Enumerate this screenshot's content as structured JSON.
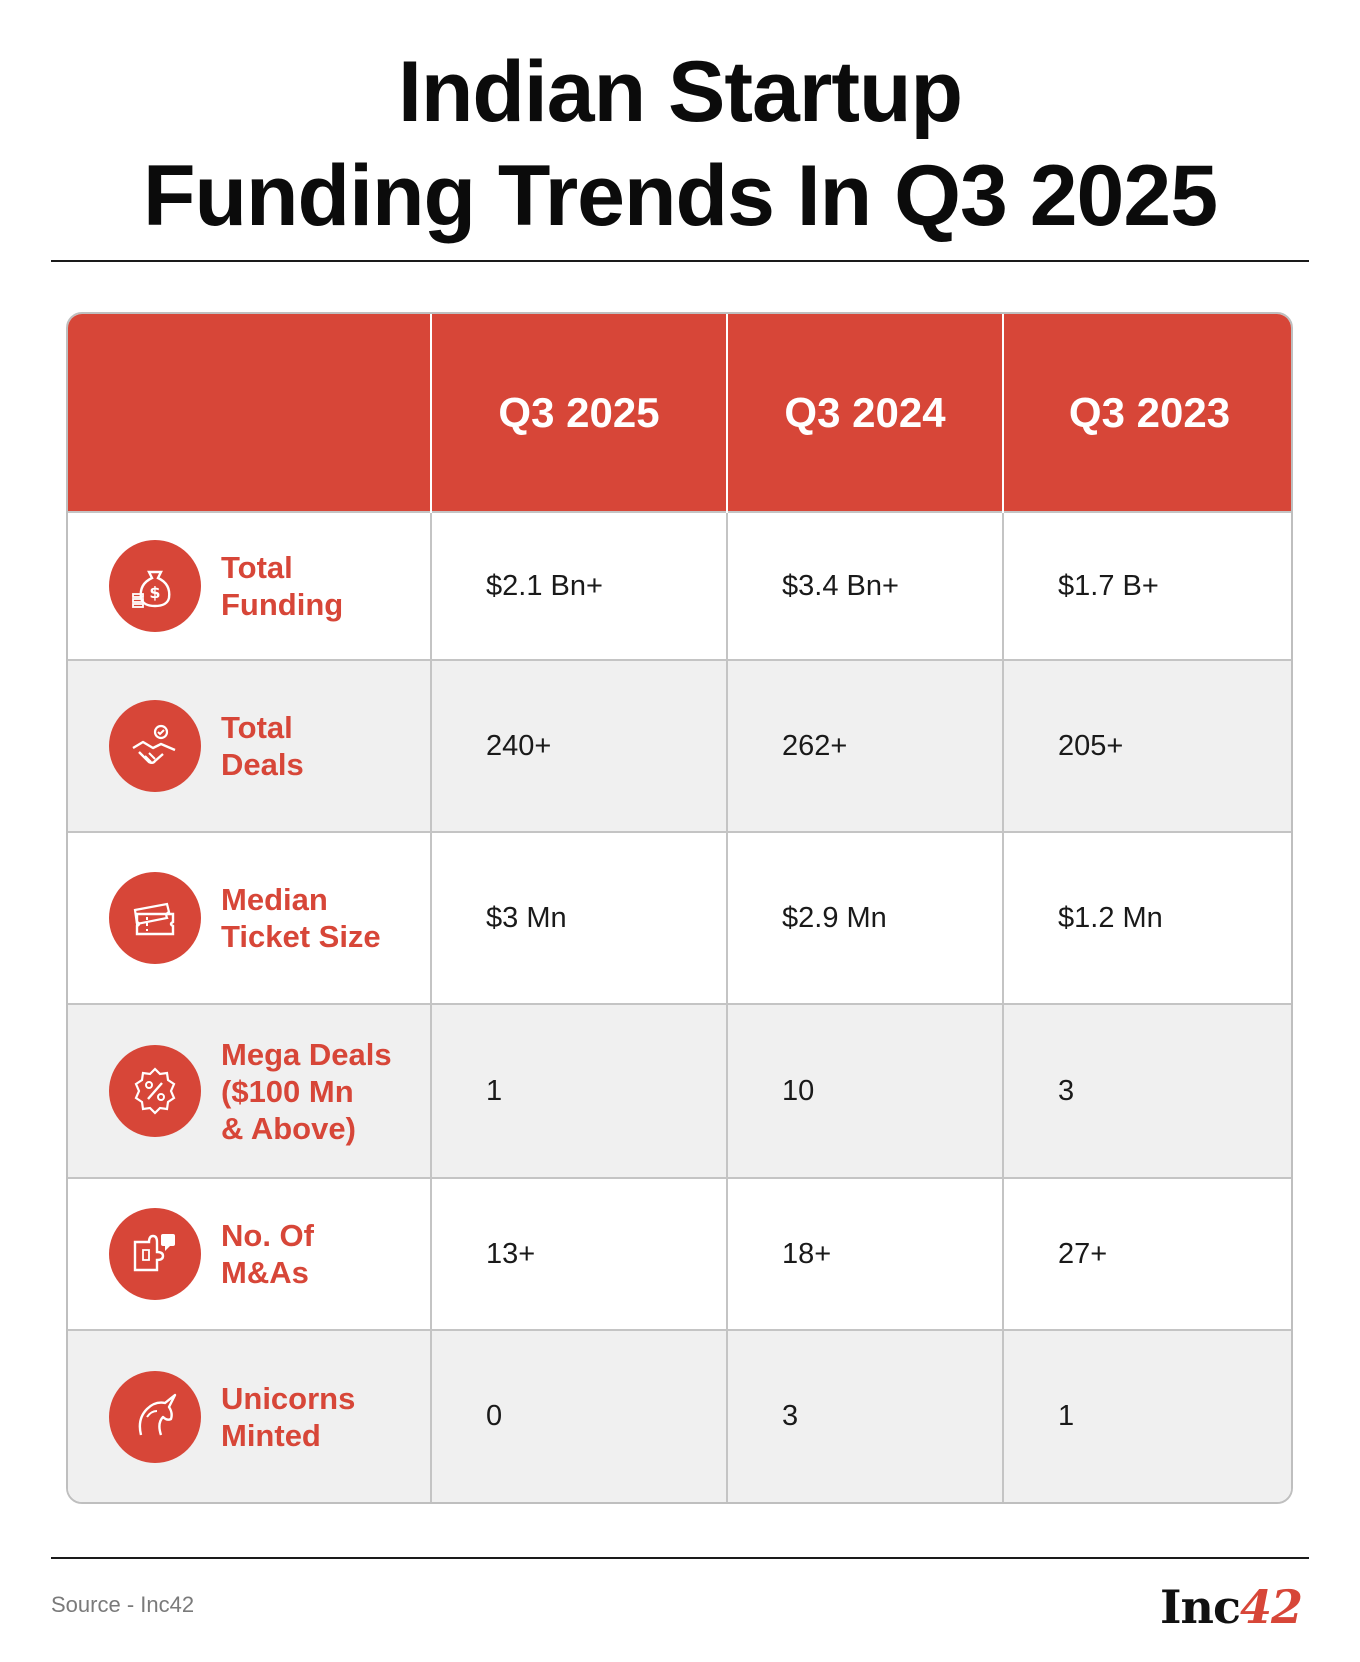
{
  "title": {
    "line1": "Indian Startup",
    "line2": "Funding Trends In Q3 2025"
  },
  "chart_data": {
    "type": "table",
    "title": "Indian Startup Funding Trends In Q3 2025",
    "columns": [
      "",
      "Q3 2025",
      "Q3 2024",
      "Q3 2023"
    ],
    "rows": [
      {
        "label": "Total\nFunding",
        "icon": "money-bag-icon",
        "values": [
          "$2.1 Bn+",
          "$3.4 Bn+",
          "$1.7 B+"
        ]
      },
      {
        "label": "Total\nDeals",
        "icon": "handshake-icon",
        "values": [
          "240+",
          "262+",
          "205+"
        ]
      },
      {
        "label": "Median\nTicket Size",
        "icon": "ticket-icon",
        "values": [
          "$3 Mn",
          "$2.9 Mn",
          "$1.2 Mn"
        ]
      },
      {
        "label": "Mega Deals\n($100 Mn\n& Above)",
        "icon": "percent-badge-icon",
        "values": [
          "1",
          "10",
          "3"
        ]
      },
      {
        "label": "No. Of\nM&As",
        "icon": "puzzle-icon",
        "values": [
          "13+",
          "18+",
          "27+"
        ]
      },
      {
        "label": "Unicorns\nMinted",
        "icon": "unicorn-icon",
        "values": [
          "0",
          "3",
          "1"
        ]
      }
    ]
  },
  "footer": {
    "source": "Source - Inc42",
    "logo_main": "Inc",
    "logo_accent": "42"
  },
  "colors": {
    "accent": "#d74638",
    "stripe": "#f0f0f0",
    "text": "#1a1a1a"
  }
}
